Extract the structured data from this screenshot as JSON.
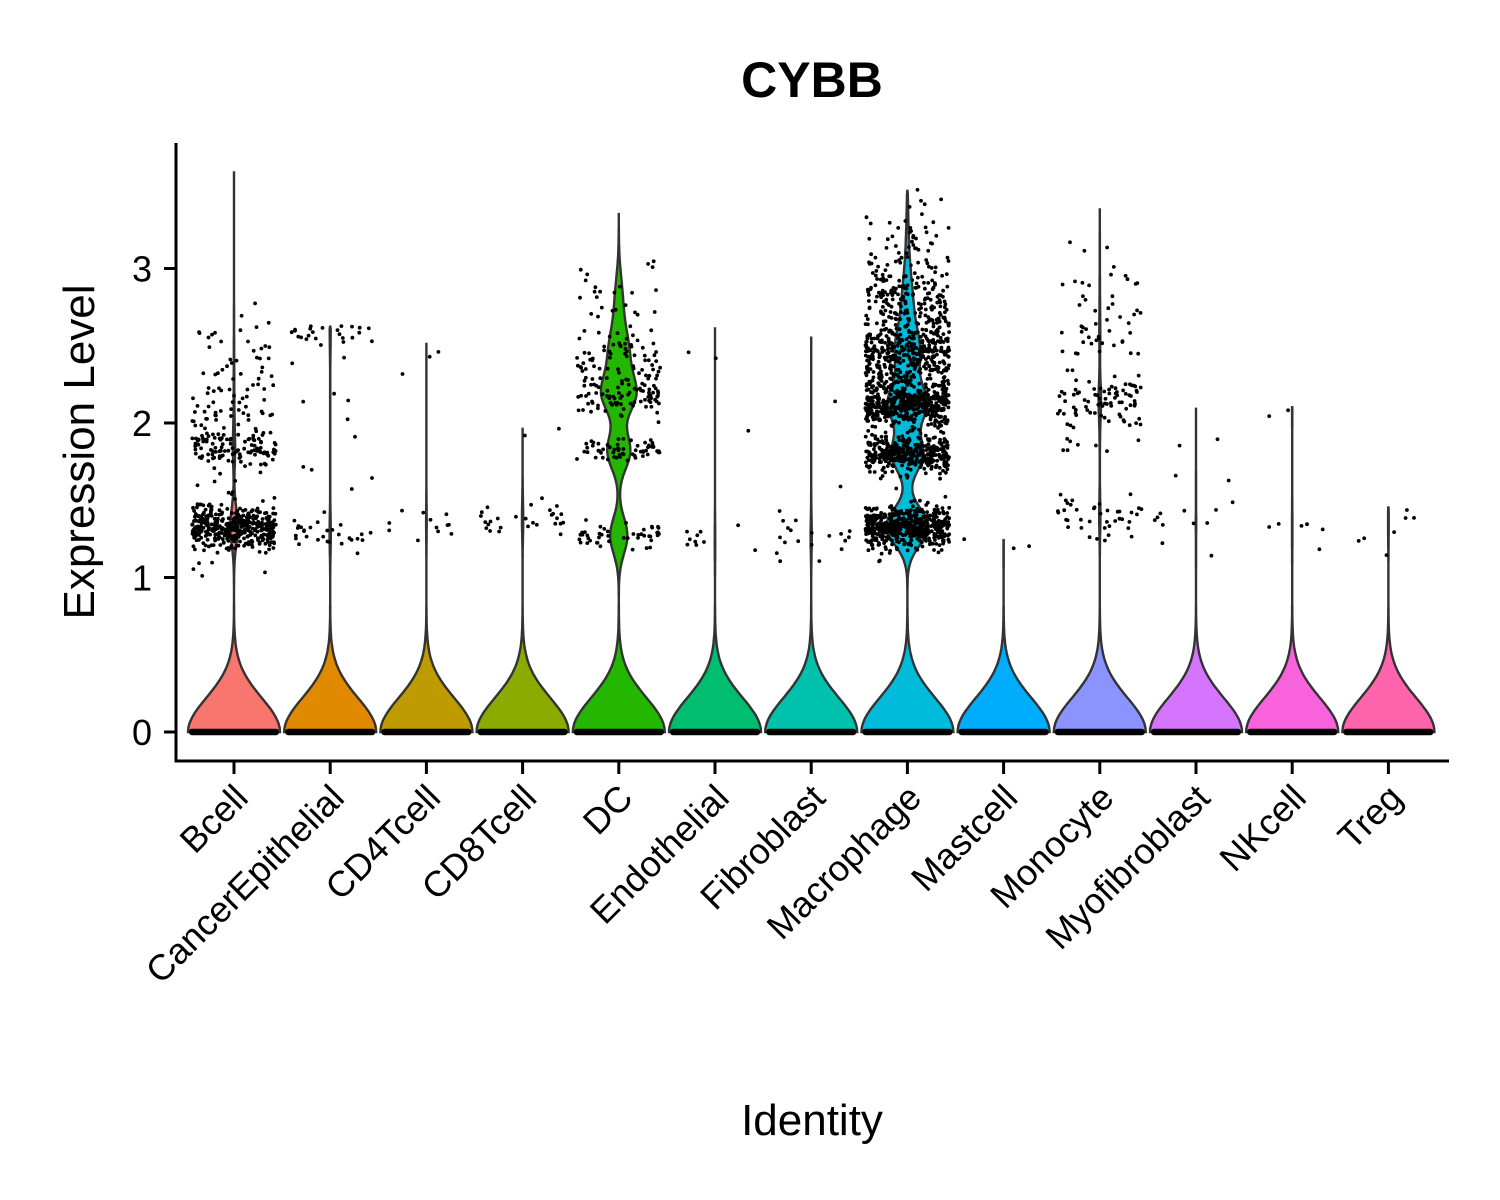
{
  "chart_data": {
    "type": "violin",
    "title": "CYBB",
    "xlabel": "Identity",
    "ylabel": "Expression Level",
    "ylim": [
      -0.18,
      3.82
    ],
    "yticks": [
      0,
      1,
      2,
      3
    ],
    "categories": [
      "Bcell",
      "CancerEpithelial",
      "CD4Tcell",
      "CD8Tcell",
      "DC",
      "Endothelial",
      "Fibroblast",
      "Macrophage",
      "Mastcell",
      "Monocyte",
      "Myofibroblast",
      "NKcell",
      "Treg"
    ],
    "fill_colors": [
      "#F8766D",
      "#E18A00",
      "#BE9C00",
      "#8CAB00",
      "#24B700",
      "#00BE70",
      "#00C1AB",
      "#00BBDA",
      "#00ACFC",
      "#8B93FF",
      "#D575FE",
      "#F962DD",
      "#FF65AC"
    ],
    "violin_max": [
      3.63,
      2.63,
      2.52,
      1.97,
      3.36,
      2.62,
      2.56,
      3.51,
      1.25,
      3.39,
      2.1,
      2.11,
      1.46
    ],
    "zero_fraction": [
      0.92,
      0.98,
      0.995,
      0.99,
      0.55,
      0.995,
      0.99,
      0.45,
      0.998,
      0.96,
      0.995,
      0.995,
      0.995
    ],
    "point_clusters": [
      [
        {
          "y": 1.33,
          "sd": 0.07,
          "n": 420
        },
        {
          "y": 1.83,
          "sd": 0.06,
          "n": 110
        },
        {
          "y": 2.1,
          "sd": 0.15,
          "n": 60
        },
        {
          "y": 2.5,
          "sd": 0.15,
          "n": 25
        },
        {
          "y": 1.5,
          "sd": 0.4,
          "n": 15
        }
      ],
      [
        {
          "y": 2.6,
          "sd": 0.04,
          "n": 22
        },
        {
          "y": 1.28,
          "sd": 0.06,
          "n": 28
        },
        {
          "y": 2.05,
          "sd": 0.3,
          "n": 14
        }
      ],
      [
        {
          "y": 1.35,
          "sd": 0.08,
          "n": 12
        },
        {
          "y": 2.2,
          "sd": 0.4,
          "n": 3
        }
      ],
      [
        {
          "y": 1.38,
          "sd": 0.07,
          "n": 28
        },
        {
          "y": 1.95,
          "sd": 0.03,
          "n": 2
        }
      ],
      [
        {
          "y": 1.27,
          "sd": 0.04,
          "n": 45
        },
        {
          "y": 1.82,
          "sd": 0.04,
          "n": 60
        },
        {
          "y": 2.18,
          "sd": 0.06,
          "n": 80
        },
        {
          "y": 2.45,
          "sd": 0.12,
          "n": 70
        },
        {
          "y": 2.8,
          "sd": 0.12,
          "n": 25
        }
      ],
      [
        {
          "y": 1.22,
          "sd": 0.05,
          "n": 10
        },
        {
          "y": 2.4,
          "sd": 0.25,
          "n": 3
        }
      ],
      [
        {
          "y": 1.27,
          "sd": 0.09,
          "n": 18
        },
        {
          "y": 2.1,
          "sd": 0.4,
          "n": 3
        }
      ],
      [
        {
          "y": 1.33,
          "sd": 0.07,
          "n": 520
        },
        {
          "y": 1.8,
          "sd": 0.06,
          "n": 380
        },
        {
          "y": 2.12,
          "sd": 0.07,
          "n": 450
        },
        {
          "y": 2.45,
          "sd": 0.12,
          "n": 380
        },
        {
          "y": 2.78,
          "sd": 0.14,
          "n": 180
        },
        {
          "y": 3.15,
          "sd": 0.17,
          "n": 55
        }
      ],
      [
        {
          "y": 1.22,
          "sd": 0.04,
          "n": 3
        }
      ],
      [
        {
          "y": 1.4,
          "sd": 0.08,
          "n": 40
        },
        {
          "y": 2.15,
          "sd": 0.08,
          "n": 80
        },
        {
          "y": 2.6,
          "sd": 0.1,
          "n": 35
        },
        {
          "y": 2.95,
          "sd": 0.15,
          "n": 15
        },
        {
          "y": 1.9,
          "sd": 0.05,
          "n": 10
        }
      ],
      [
        {
          "y": 1.35,
          "sd": 0.15,
          "n": 12
        },
        {
          "y": 1.95,
          "sd": 0.15,
          "n": 3
        }
      ],
      [
        {
          "y": 1.3,
          "sd": 0.1,
          "n": 6
        },
        {
          "y": 2.08,
          "sd": 0.03,
          "n": 2
        }
      ],
      [
        {
          "y": 1.35,
          "sd": 0.1,
          "n": 7
        }
      ]
    ],
    "legend": "none",
    "grid": false
  }
}
